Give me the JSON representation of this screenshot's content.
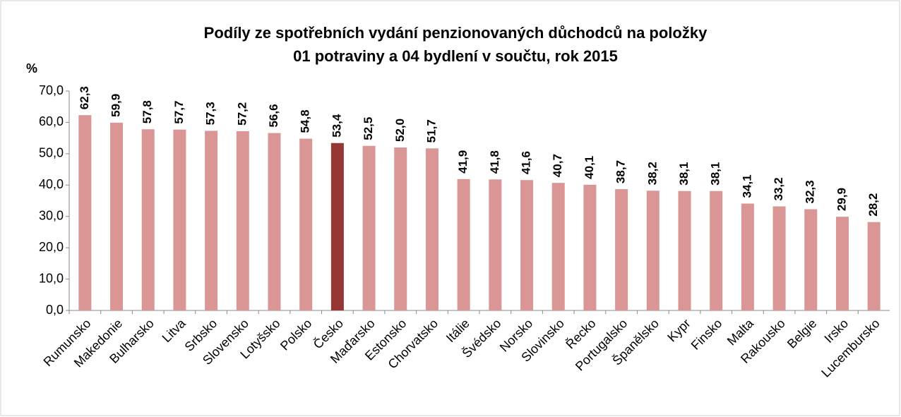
{
  "chart_data": {
    "type": "bar",
    "title": [
      "Podíly ze spotřebních vydání penzionovaných důchodců na  položky",
      "01 potraviny a 04 bydlení v součtu, rok 2015"
    ],
    "y_label": "%",
    "categories": [
      "Rumunsko",
      "Makedonie",
      "Bulharsko",
      "Litva",
      "Srbsko",
      "Slovensko",
      "Lotyšsko",
      "Polsko",
      "Česko",
      "Maďarsko",
      "Estonsko",
      "Chorvatsko",
      "Itálie",
      "Švédsko",
      "Norsko",
      "Slovinsko",
      "Řecko",
      "Portugalsko",
      "Španělsko",
      "Kypr",
      "Finsko",
      "Malta",
      "Rakousko",
      "Belgie",
      "Irsko",
      "Lucembursko"
    ],
    "values": [
      62.3,
      59.9,
      57.8,
      57.7,
      57.3,
      57.2,
      56.6,
      54.8,
      53.4,
      52.5,
      52.0,
      51.7,
      41.9,
      41.8,
      41.6,
      40.7,
      40.1,
      38.7,
      38.2,
      38.1,
      38.1,
      34.1,
      33.2,
      32.3,
      29.9,
      28.2
    ],
    "value_labels": [
      "62,3",
      "59,9",
      "57,8",
      "57,7",
      "57,3",
      "57,2",
      "56,6",
      "54,8",
      "53,4",
      "52,5",
      "52,0",
      "51,7",
      "41,9",
      "41,8",
      "41,6",
      "40,7",
      "40,1",
      "38,7",
      "38,2",
      "38,1",
      "38,1",
      "34,1",
      "33,2",
      "32,3",
      "29,9",
      "28,2"
    ],
    "colors": [
      "#d99694",
      "#d99694",
      "#d99694",
      "#d99694",
      "#d99694",
      "#d99694",
      "#d99694",
      "#d99694",
      "#953735",
      "#d99694",
      "#d99694",
      "#d99694",
      "#d99694",
      "#d99694",
      "#d99694",
      "#d99694",
      "#d99694",
      "#d99694",
      "#d99694",
      "#d99694",
      "#d99694",
      "#d99694",
      "#d99694",
      "#d99694",
      "#d99694",
      "#d99694"
    ],
    "ylim": [
      0,
      70
    ],
    "yticks": [
      {
        "value": 0,
        "label": "0,0"
      },
      {
        "value": 10,
        "label": "10,0"
      },
      {
        "value": 20,
        "label": "20,0"
      },
      {
        "value": 30,
        "label": "30,0"
      },
      {
        "value": 40,
        "label": "40,0"
      },
      {
        "value": 50,
        "label": "50,0"
      },
      {
        "value": 60,
        "label": "60,0"
      },
      {
        "value": 70,
        "label": "70,0"
      }
    ],
    "grid": false
  }
}
